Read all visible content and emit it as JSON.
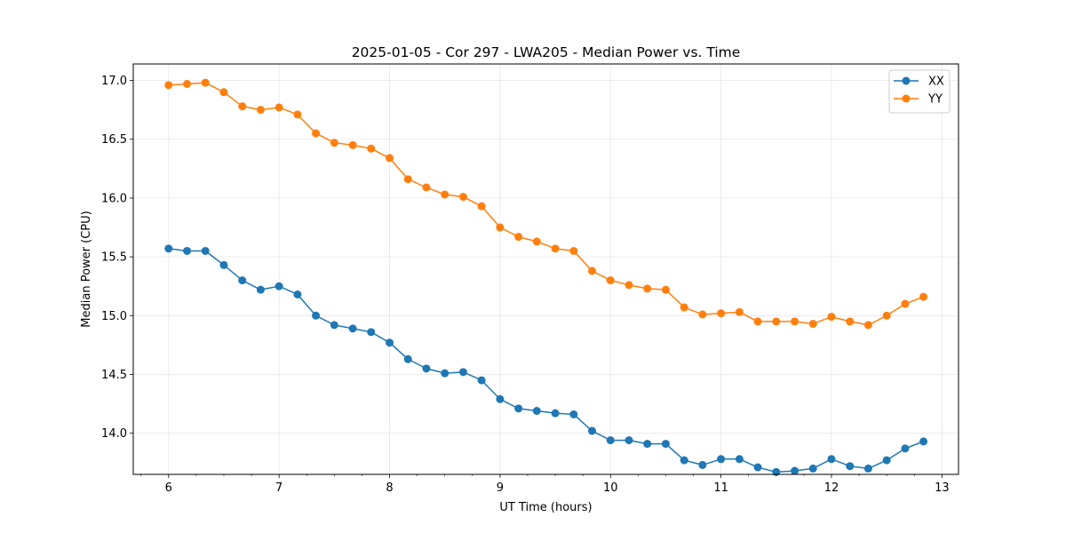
{
  "chart_data": {
    "type": "line",
    "title": "2025-01-05 - Cor 297 - LWA205 - Median Power vs. Time",
    "xlabel": "UT Time (hours)",
    "ylabel": "Median Power (CPU)",
    "xlim": [
      5.68,
      13.15
    ],
    "ylim": [
      13.65,
      17.14
    ],
    "xticks": [
      6,
      7,
      8,
      9,
      10,
      11,
      12,
      13
    ],
    "xtick_labels": [
      "6",
      "7",
      "8",
      "9",
      "10",
      "11",
      "12",
      "13"
    ],
    "xminor_step": 0.25,
    "yticks": [
      14.0,
      14.5,
      15.0,
      15.5,
      16.0,
      16.5,
      17.0
    ],
    "ytick_labels": [
      "14.0",
      "14.5",
      "15.0",
      "15.5",
      "16.0",
      "16.5",
      "17.0"
    ],
    "grid": true,
    "legend_position": "top-right",
    "x": [
      6.0,
      6.167,
      6.333,
      6.5,
      6.667,
      6.833,
      7.0,
      7.167,
      7.333,
      7.5,
      7.667,
      7.833,
      8.0,
      8.167,
      8.333,
      8.5,
      8.667,
      8.833,
      9.0,
      9.167,
      9.333,
      9.5,
      9.667,
      9.833,
      10.0,
      10.167,
      10.333,
      10.5,
      10.667,
      10.833,
      11.0,
      11.167,
      11.333,
      11.5,
      11.667,
      11.833,
      12.0,
      12.167,
      12.333,
      12.5,
      12.667,
      12.833
    ],
    "series": [
      {
        "name": "XX",
        "color": "#1f77b4",
        "values": [
          15.57,
          15.55,
          15.55,
          15.43,
          15.3,
          15.22,
          15.25,
          15.18,
          15.0,
          14.92,
          14.89,
          14.86,
          14.77,
          14.63,
          14.55,
          14.51,
          14.52,
          14.45,
          14.29,
          14.21,
          14.19,
          14.17,
          14.16,
          14.02,
          13.94,
          13.94,
          13.91,
          13.91,
          13.77,
          13.73,
          13.78,
          13.78,
          13.71,
          13.67,
          13.68,
          13.7,
          13.78,
          13.72,
          13.7,
          13.77,
          13.87,
          13.93
        ]
      },
      {
        "name": "YY",
        "color": "#ff7f0e",
        "values": [
          16.96,
          16.97,
          16.98,
          16.9,
          16.78,
          16.75,
          16.77,
          16.71,
          16.55,
          16.47,
          16.45,
          16.42,
          16.34,
          16.16,
          16.09,
          16.03,
          16.01,
          15.93,
          15.75,
          15.67,
          15.63,
          15.57,
          15.55,
          15.38,
          15.3,
          15.26,
          15.23,
          15.22,
          15.07,
          15.01,
          15.02,
          15.03,
          14.95,
          14.95,
          14.95,
          14.93,
          14.99,
          14.95,
          14.92,
          15.0,
          15.1,
          15.16
        ]
      }
    ]
  }
}
